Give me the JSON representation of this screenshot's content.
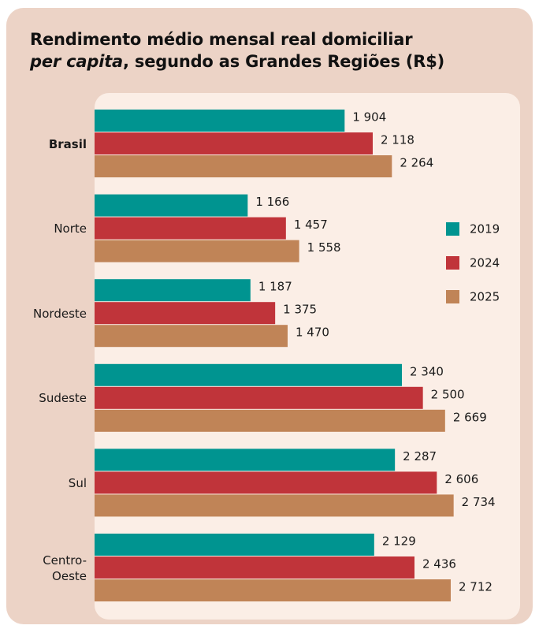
{
  "chart_data": {
    "type": "bar",
    "orientation": "horizontal",
    "title": {
      "line1": "Rendimento médio mensal real domiciliar",
      "italic": "per capita",
      "line2": ", segundo as Grandes Regiões (R$)"
    },
    "categories": [
      "Brasil",
      "Norte",
      "Nordeste",
      "Sudeste",
      "Sul",
      "Centro-Oeste"
    ],
    "series": [
      {
        "name": "2019",
        "color": "#009490",
        "values": [
          1904,
          1166,
          1187,
          2340,
          2287,
          2129
        ],
        "value_labels": [
          "1 904",
          "1 166",
          "1 187",
          "2 340",
          "2 287",
          "2 129"
        ]
      },
      {
        "name": "2024",
        "color": "#c0343a",
        "values": [
          2118,
          1457,
          1375,
          2500,
          2606,
          2436
        ],
        "value_labels": [
          "2 118",
          "1 457",
          "1 375",
          "2 500",
          "2 606",
          "2 436"
        ]
      },
      {
        "name": "2025",
        "color": "#c08457",
        "values": [
          2264,
          1558,
          1470,
          2669,
          2734,
          2712
        ],
        "value_labels": [
          "2 264",
          "1 558",
          "1 470",
          "2 669",
          "2 734",
          "2 712"
        ]
      }
    ],
    "xlim": [
      0,
      3240
    ],
    "legend": "right"
  }
}
